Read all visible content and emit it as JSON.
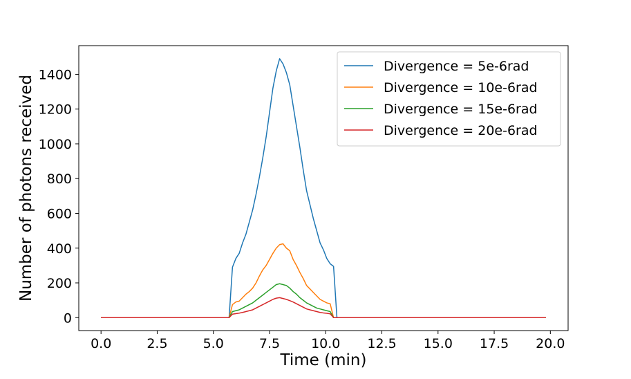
{
  "chart_data": {
    "type": "line",
    "title": "",
    "xlabel": "Time (min)",
    "ylabel": "Number of photons received",
    "xlim": [
      -0.99,
      20.79
    ],
    "ylim": [
      -74.5,
      1565
    ],
    "xticks": [
      0.0,
      2.5,
      5.0,
      7.5,
      10.0,
      12.5,
      15.0,
      17.5,
      20.0
    ],
    "xtick_labels": [
      "0.0",
      "2.5",
      "5.0",
      "7.5",
      "10.0",
      "12.5",
      "15.0",
      "17.5",
      "20.0"
    ],
    "yticks": [
      0,
      200,
      400,
      600,
      800,
      1000,
      1200,
      1400
    ],
    "ytick_labels": [
      "0",
      "200",
      "400",
      "600",
      "800",
      "1000",
      "1200",
      "1400"
    ],
    "grid": false,
    "legend_position": "upper-right",
    "x": [
      0,
      5.7,
      5.85,
      6.0,
      6.15,
      6.3,
      6.45,
      6.6,
      6.75,
      6.9,
      7.05,
      7.2,
      7.35,
      7.5,
      7.65,
      7.8,
      7.95,
      8.1,
      8.25,
      8.4,
      8.55,
      8.7,
      8.85,
      9.0,
      9.15,
      9.3,
      9.45,
      9.6,
      9.75,
      9.9,
      10.05,
      10.2,
      10.35,
      10.5,
      10.65,
      10.8,
      10.95,
      19.8
    ],
    "series": [
      {
        "name": "Divergence = 5e-6rad",
        "color": "#1f77b4",
        "values": [
          0,
          0,
          290,
          340,
          370,
          430,
          480,
          550,
          620,
          710,
          810,
          920,
          1040,
          1180,
          1320,
          1420,
          1490,
          1460,
          1410,
          1340,
          1220,
          1100,
          980,
          850,
          730,
          650,
          570,
          500,
          430,
          390,
          340,
          310,
          295,
          0,
          0,
          0,
          0,
          0
        ]
      },
      {
        "name": "Divergence = 10e-6rad",
        "color": "#ff7f0e",
        "values": [
          0,
          0,
          75,
          90,
          95,
          115,
          135,
          150,
          170,
          200,
          240,
          275,
          300,
          335,
          370,
          400,
          420,
          425,
          400,
          385,
          335,
          300,
          260,
          225,
          185,
          165,
          145,
          125,
          105,
          95,
          85,
          80,
          0,
          0,
          0,
          0,
          0,
          0
        ]
      },
      {
        "name": "Divergence = 15e-6rad",
        "color": "#2ca02c",
        "values": [
          0,
          0,
          35,
          40,
          45,
          55,
          65,
          75,
          85,
          100,
          115,
          130,
          145,
          160,
          175,
          190,
          195,
          190,
          185,
          170,
          150,
          135,
          115,
          100,
          85,
          75,
          65,
          55,
          50,
          45,
          40,
          35,
          0,
          0,
          0,
          0,
          0,
          0
        ]
      },
      {
        "name": "Divergence = 20e-6rad",
        "color": "#d62728",
        "values": [
          0,
          0,
          20,
          23,
          26,
          30,
          35,
          40,
          45,
          55,
          65,
          75,
          85,
          95,
          105,
          112,
          115,
          110,
          105,
          98,
          90,
          80,
          70,
          60,
          50,
          45,
          40,
          35,
          30,
          27,
          25,
          22,
          0,
          0,
          0,
          0,
          0,
          0
        ]
      }
    ]
  }
}
